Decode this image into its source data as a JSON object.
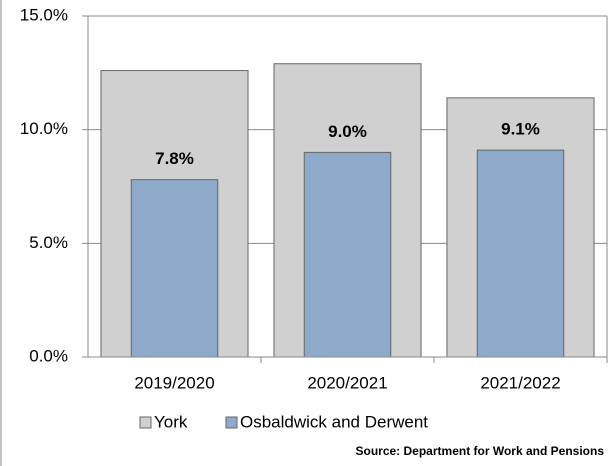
{
  "chart_data": {
    "type": "bar",
    "categories": [
      "2019/2020",
      "2020/2021",
      "2021/2022"
    ],
    "series": [
      {
        "name": "York",
        "color": "#d0d0d0",
        "values": [
          12.6,
          12.9,
          11.4
        ]
      },
      {
        "name": "Osbaldwick and Derwent",
        "color": "#8eaacb",
        "values": [
          7.8,
          9.0,
          9.1
        ],
        "value_labels": [
          "7.8%",
          "9.0%",
          "9.1%"
        ]
      }
    ],
    "ylim": [
      0,
      15
    ],
    "yticks": [
      {
        "value": 0,
        "label": "0.0%"
      },
      {
        "value": 5,
        "label": "5.0%"
      },
      {
        "value": 10,
        "label": "10.0%"
      },
      {
        "value": 15,
        "label": "15.0%"
      }
    ],
    "grid": true,
    "source": "Source: Department for Work and Pensions"
  }
}
